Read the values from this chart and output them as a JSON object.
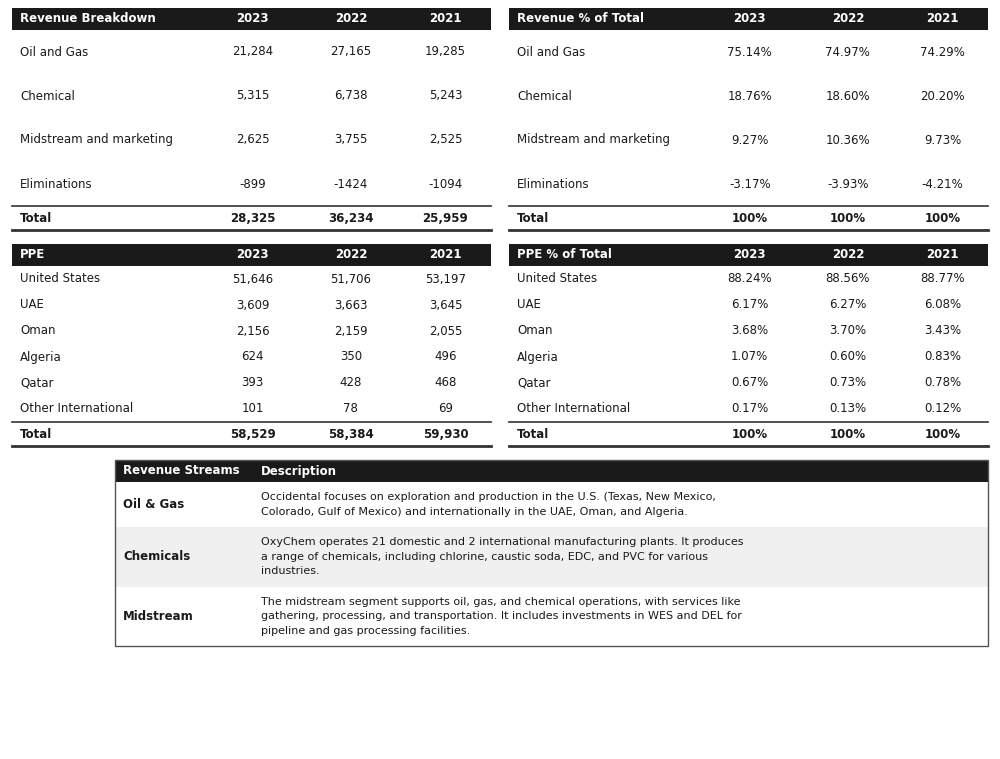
{
  "background_color": "#ffffff",
  "header_bg": "#1a1a1a",
  "header_text": "#ffffff",
  "body_text": "#1a1a1a",
  "alt_row_bg": "#f0f0f0",
  "white_bg": "#ffffff",
  "sep_color": "#333333",
  "table1": {
    "header": [
      "Revenue Breakdown",
      "2023",
      "2022",
      "2021"
    ],
    "rows": [
      [
        "Oil and Gas",
        "21,284",
        "27,165",
        "19,285"
      ],
      [
        "Chemical",
        "5,315",
        "6,738",
        "5,243"
      ],
      [
        "Midstream and marketing",
        "2,625",
        "3,755",
        "2,525"
      ],
      [
        "Eliminations",
        "-899",
        "-1424",
        "-1094"
      ]
    ],
    "total": [
      "Total",
      "28,325",
      "36,234",
      "25,959"
    ]
  },
  "table2": {
    "header": [
      "Revenue % of Total",
      "2023",
      "2022",
      "2021"
    ],
    "rows": [
      [
        "Oil and Gas",
        "75.14%",
        "74.97%",
        "74.29%"
      ],
      [
        "Chemical",
        "18.76%",
        "18.60%",
        "20.20%"
      ],
      [
        "Midstream and marketing",
        "9.27%",
        "10.36%",
        "9.73%"
      ],
      [
        "Eliminations",
        "-3.17%",
        "-3.93%",
        "-4.21%"
      ]
    ],
    "total": [
      "Total",
      "100%",
      "100%",
      "100%"
    ]
  },
  "table3": {
    "header": [
      "PPE",
      "2023",
      "2022",
      "2021"
    ],
    "rows": [
      [
        "United States",
        "51,646",
        "51,706",
        "53,197"
      ],
      [
        "UAE",
        "3,609",
        "3,663",
        "3,645"
      ],
      [
        "Oman",
        "2,156",
        "2,159",
        "2,055"
      ],
      [
        "Algeria",
        "624",
        "350",
        "496"
      ],
      [
        "Qatar",
        "393",
        "428",
        "468"
      ],
      [
        "Other International",
        "101",
        "78",
        "69"
      ]
    ],
    "total": [
      "Total",
      "58,529",
      "58,384",
      "59,930"
    ]
  },
  "table4": {
    "header": [
      "PPE % of Total",
      "2023",
      "2022",
      "2021"
    ],
    "rows": [
      [
        "United States",
        "88.24%",
        "88.56%",
        "88.77%"
      ],
      [
        "UAE",
        "6.17%",
        "6.27%",
        "6.08%"
      ],
      [
        "Oman",
        "3.68%",
        "3.70%",
        "3.43%"
      ],
      [
        "Algeria",
        "1.07%",
        "0.60%",
        "0.83%"
      ],
      [
        "Qatar",
        "0.67%",
        "0.73%",
        "0.78%"
      ],
      [
        "Other International",
        "0.17%",
        "0.13%",
        "0.12%"
      ]
    ],
    "total": [
      "Total",
      "100%",
      "100%",
      "100%"
    ]
  },
  "table5": {
    "header": [
      "Revenue Streams",
      "Description"
    ],
    "rows": [
      {
        "label": "Oil & Gas",
        "lines": [
          "Occidental focuses on exploration and production in the U.S. (Texas, New Mexico,",
          "Colorado, Gulf of Mexico) and internationally in the UAE, Oman, and Algeria."
        ],
        "bg": "#ffffff"
      },
      {
        "label": "Chemicals",
        "lines": [
          "OxyChem operates 21 domestic and 2 international manufacturing plants. It produces",
          "a range of chemicals, including chlorine, caustic soda, EDC, and PVC for various",
          "industries."
        ],
        "bg": "#f0f0f0"
      },
      {
        "label": "Midstream",
        "lines": [
          "The midstream segment supports oil, gas, and chemical operations, with services like",
          "gathering, processing, and transportation. It includes investments in WES and DEL for",
          "pipeline and gas processing facilities."
        ],
        "bg": "#ffffff"
      }
    ]
  }
}
